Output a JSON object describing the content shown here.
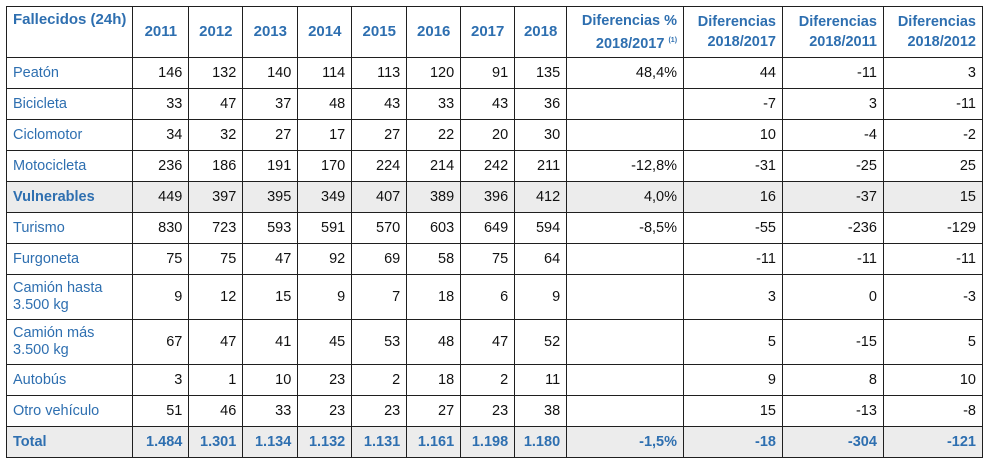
{
  "header": {
    "first": "Fallecidos (24h)",
    "years": [
      "2011",
      "2012",
      "2013",
      "2014",
      "2015",
      "2016",
      "2017",
      "2018"
    ],
    "diff_pct_line1": "Diferencias %",
    "diff_pct_line2": "2018/2017",
    "diff_pct_note": "(1)",
    "diff_2017_line1": "Diferencias",
    "diff_2017_line2": "2018/2017",
    "diff_2011_line1": "Diferencias",
    "diff_2011_line2": "2018/2011",
    "diff_2012_line1": "Diferencias",
    "diff_2012_line2": "2018/2012"
  },
  "rows": [
    {
      "label": "Peatón",
      "v": [
        "146",
        "132",
        "140",
        "114",
        "113",
        "120",
        "91",
        "135"
      ],
      "pct": "48,4%",
      "d17": "44",
      "d11": "-11",
      "d12": "3"
    },
    {
      "label": "Bicicleta",
      "v": [
        "33",
        "47",
        "37",
        "48",
        "43",
        "33",
        "43",
        "36"
      ],
      "pct": "",
      "d17": "-7",
      "d11": "3",
      "d12": "-11"
    },
    {
      "label": "Ciclomotor",
      "v": [
        "34",
        "32",
        "27",
        "17",
        "27",
        "22",
        "20",
        "30"
      ],
      "pct": "",
      "d17": "10",
      "d11": "-4",
      "d12": "-2"
    },
    {
      "label": "Motocicleta",
      "v": [
        "236",
        "186",
        "191",
        "170",
        "224",
        "214",
        "242",
        "211"
      ],
      "pct": "-12,8%",
      "d17": "-31",
      "d11": "-25",
      "d12": "25"
    },
    {
      "label": "Vulnerables",
      "v": [
        "449",
        "397",
        "395",
        "349",
        "407",
        "389",
        "396",
        "412"
      ],
      "pct": "4,0%",
      "d17": "16",
      "d11": "-37",
      "d12": "15"
    },
    {
      "label": "Turismo",
      "v": [
        "830",
        "723",
        "593",
        "591",
        "570",
        "603",
        "649",
        "594"
      ],
      "pct": "-8,5%",
      "d17": "-55",
      "d11": "-236",
      "d12": "-129"
    },
    {
      "label": "Furgoneta",
      "v": [
        "75",
        "75",
        "47",
        "92",
        "69",
        "58",
        "75",
        "64"
      ],
      "pct": "",
      "d17": "-11",
      "d11": "-11",
      "d12": "-11"
    },
    {
      "label": "Camión hasta 3.500 kg",
      "v": [
        "9",
        "12",
        "15",
        "9",
        "7",
        "18",
        "6",
        "9"
      ],
      "pct": "",
      "d17": "3",
      "d11": "0",
      "d12": "-3"
    },
    {
      "label": "Camión más 3.500 kg",
      "v": [
        "67",
        "47",
        "41",
        "45",
        "53",
        "48",
        "47",
        "52"
      ],
      "pct": "",
      "d17": "5",
      "d11": "-15",
      "d12": "5"
    },
    {
      "label": "Autobús",
      "v": [
        "3",
        "1",
        "10",
        "23",
        "2",
        "18",
        "2",
        "11"
      ],
      "pct": "",
      "d17": "9",
      "d11": "8",
      "d12": "10"
    },
    {
      "label": "Otro vehículo",
      "v": [
        "51",
        "46",
        "33",
        "23",
        "23",
        "27",
        "23",
        "38"
      ],
      "pct": "",
      "d17": "15",
      "d11": "-13",
      "d12": "-8"
    }
  ],
  "total": {
    "label": "Total",
    "v": [
      "1.484",
      "1.301",
      "1.134",
      "1.132",
      "1.131",
      "1.161",
      "1.198",
      "1.180"
    ],
    "pct": "-1,5%",
    "d17": "-18",
    "d11": "-304",
    "d12": "-121"
  },
  "colors": {
    "header_text": "#2e6fb0",
    "shaded_row": "#ececec",
    "border": "#1f1f1f"
  }
}
